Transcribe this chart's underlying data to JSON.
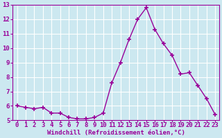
{
  "x": [
    0,
    1,
    2,
    3,
    4,
    5,
    6,
    7,
    8,
    9,
    10,
    11,
    12,
    13,
    14,
    15,
    16,
    17,
    18,
    19,
    20,
    21,
    22,
    23
  ],
  "y": [
    6.0,
    5.9,
    5.8,
    5.9,
    5.5,
    5.5,
    5.2,
    5.1,
    5.1,
    5.2,
    5.5,
    7.6,
    9.0,
    10.6,
    12.0,
    12.8,
    11.3,
    10.3,
    9.5,
    8.2,
    8.3,
    7.4,
    6.5,
    5.4
  ],
  "xlabel": "Windchill (Refroidissement éolien,°C)",
  "xlim_min": -0.5,
  "xlim_max": 23.5,
  "ylim_min": 5,
  "ylim_max": 13,
  "yticks": [
    5,
    6,
    7,
    8,
    9,
    10,
    11,
    12,
    13
  ],
  "xticks": [
    0,
    1,
    2,
    3,
    4,
    5,
    6,
    7,
    8,
    9,
    10,
    11,
    12,
    13,
    14,
    15,
    16,
    17,
    18,
    19,
    20,
    21,
    22,
    23
  ],
  "line_color": "#990099",
  "marker": "+",
  "marker_size": 4,
  "marker_lw": 1.2,
  "line_width": 1.0,
  "bg_color": "#cce8f0",
  "grid_color": "#ffffff",
  "tick_label_color": "#990099",
  "xlabel_color": "#990099",
  "xlabel_fontsize": 6.5,
  "tick_fontsize": 6.5,
  "spine_color": "#990099"
}
